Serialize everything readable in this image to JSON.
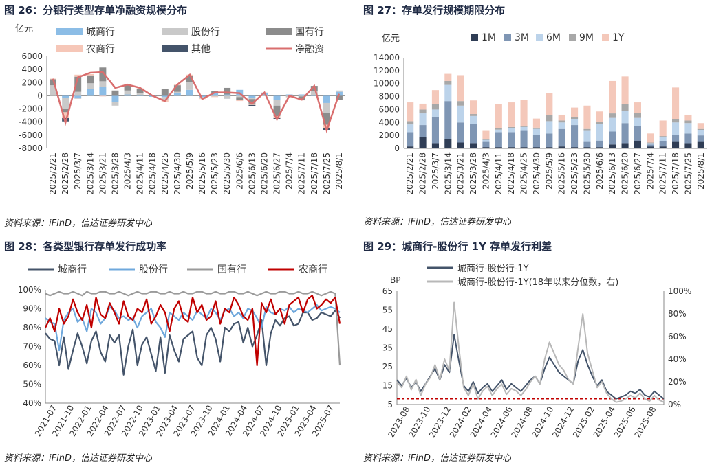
{
  "colors": {
    "chengshang": "#8cbde6",
    "gufen": "#c9c9c9",
    "guoyou": "#8c8c8c",
    "nongshang": "#f6c7b8",
    "qita": "#44546a",
    "net": "#d96e6e",
    "m1": "#2f3d55",
    "m3": "#7f96b4",
    "m6": "#bcd3ea",
    "m9": "#a8a8a8",
    "y1": "#f4c8ba",
    "c28_cs": "#44546a",
    "c28_gf": "#6fa8dc",
    "c28_gy": "#9a9a9a",
    "c28_ns": "#c00000",
    "c29_a": "#44546a",
    "c29_b": "#b8b8b8",
    "c29_ref": "#c00000"
  },
  "charts": [
    {
      "id": "c26",
      "title": "图 26：分银行类型存单净融资规模分布",
      "source": "资料来源：iFinD，信达证券研发中心",
      "chart_data": {
        "type": "bar",
        "stacked": true,
        "unit_label": "亿元",
        "ylim": [
          -8000,
          6000
        ],
        "yticks": [
          "6000",
          "4000",
          "2000",
          "0",
          "-2000",
          "-4000",
          "-6000",
          "-8000"
        ],
        "ytick_values": [
          6000,
          4000,
          2000,
          0,
          -2000,
          -4000,
          -6000,
          -8000
        ],
        "categories": [
          "2025/2/21",
          "2025/2/28",
          "2025/3/7",
          "2025/3/14",
          "2025/3/21",
          "2025/3/28",
          "2025/4/3",
          "2025/4/11",
          "2025/4/18",
          "2025/4/25",
          "2025/4/30",
          "2025/5/9",
          "2025/5/16",
          "2025/5/23",
          "2025/5/30",
          "2025/6/6",
          "2025/6/13",
          "2025/6/20",
          "2025/6/27",
          "2025/7/4",
          "2025/7/11",
          "2025/7/18",
          "2025/7/25",
          "2025/8/1"
        ],
        "xlabels": [
          "2025/2/21",
          "2025/2/28",
          "2025/3/7",
          "2025/3/14",
          "2025/3/21",
          "2025/3/28",
          "2025/4/3",
          "2025/4/11",
          "2025/4/18",
          "2025/4/25",
          "2025/4/30",
          "2025/5/9",
          "2025/5/16",
          "2025/5/23",
          "2025/5/30",
          "2025/6/6",
          "2025/6/13",
          "2025/6/20",
          "2025/6/27",
          "2025/7/4",
          "2025/7/11",
          "2025/7/18",
          "2025/7/25",
          "2025/8/1"
        ],
        "series": [
          {
            "name": "城商行",
            "values": [
              0,
              -300,
              -300,
              1000,
              1400,
              -1000,
              200,
              100,
              -150,
              -200,
              400,
              900,
              -200,
              400,
              200,
              900,
              -300,
              400,
              -600,
              200,
              200,
              100,
              -1100,
              600
            ]
          },
          {
            "name": "股份行",
            "values": [
              1600,
              -1700,
              600,
              900,
              800,
              -500,
              600,
              300,
              0,
              -400,
              200,
              1200,
              -200,
              -100,
              -300,
              -200,
              -200,
              100,
              -900,
              -200,
              -100,
              600,
              -1500,
              200
            ]
          },
          {
            "name": "国有行",
            "values": [
              900,
              -500,
              2300,
              1200,
              2100,
              800,
              900,
              700,
              0,
              1000,
              1000,
              900,
              0,
              300,
              1000,
              -500,
              -700,
              0,
              -1600,
              0,
              -500,
              800,
              -1800,
              -600
            ]
          },
          {
            "name": "农商行",
            "values": [
              100,
              -900,
              300,
              200,
              -100,
              0,
              100,
              50,
              0,
              -300,
              100,
              200,
              -100,
              -100,
              0,
              -100,
              -200,
              -50,
              -300,
              -50,
              -100,
              0,
              -500,
              0
            ]
          },
          {
            "name": "其他",
            "values": [
              0,
              -500,
              -100,
              0,
              0,
              0,
              0,
              0,
              0,
              0,
              0,
              0,
              0,
              0,
              -100,
              0,
              -200,
              0,
              -200,
              0,
              0,
              0,
              -300,
              0
            ]
          }
        ],
        "line": {
          "name": "净融资",
          "values": [
            2600,
            -4100,
            2800,
            3500,
            3600,
            1200,
            1700,
            1200,
            0,
            -800,
            1700,
            3200,
            -500,
            500,
            500,
            400,
            -1200,
            500,
            -3600,
            0,
            -600,
            1500,
            -5300,
            300
          ]
        }
      }
    },
    {
      "id": "c27",
      "title": "图 27：存单发行规模期限分布",
      "source": "资料来源：iFinD，信达证券研发中心",
      "chart_data": {
        "type": "bar",
        "stacked": true,
        "unit_label": "亿元",
        "ylim": [
          0,
          14000
        ],
        "yticks": [
          "14000",
          "12000",
          "10000",
          "8000",
          "6000",
          "4000",
          "2000",
          "0"
        ],
        "ytick_values": [
          14000,
          12000,
          10000,
          8000,
          6000,
          4000,
          2000,
          0
        ],
        "categories": [
          "2025/2/21",
          "2025/2/28",
          "2025/3/7",
          "2025/3/14",
          "2025/3/21",
          "2025/3/28",
          "2025/4/3",
          "2025/4/11",
          "2025/4/18",
          "2025/4/25",
          "2025/4/30",
          "2025/5/9",
          "2025/5/16",
          "2025/5/23",
          "2025/5/30",
          "2025/6/6",
          "2025/6/13",
          "2025/6/20",
          "2025/6/27",
          "2025/7/4",
          "2025/7/11",
          "2025/7/18",
          "2025/7/25",
          "2025/8/1"
        ],
        "xlabels": [
          "2025/2/21",
          "2025/2/28",
          "2025/3/7",
          "2025/3/14",
          "2025/3/21",
          "2025/3/28",
          "2025/4/3",
          "2025/4/11",
          "2025/4/18",
          "2025/4/25",
          "2025/4/30",
          "2025/5/9",
          "2025/5/16",
          "2025/5/23",
          "2025/5/30",
          "2025/6/6",
          "2025/6/13",
          "2025/6/20",
          "2025/6/27",
          "2025/7/4",
          "2025/7/11",
          "2025/7/18",
          "2025/7/25",
          "2025/8/1"
        ],
        "series": [
          {
            "name": "1M",
            "values": [
              300,
              1800,
              800,
              1400,
              900,
              800,
              200,
              200,
              200,
              200,
              200,
              200,
              300,
              200,
              200,
              200,
              600,
              800,
              1200,
              300,
              300,
              1000,
              800,
              1000
            ]
          },
          {
            "name": "3M",
            "values": [
              2200,
              1800,
              4000,
              5900,
              3100,
              3000,
              800,
              2300,
              2300,
              2500,
              1900,
              2100,
              2700,
              3400,
              800,
              1000,
              2000,
              3100,
              2300,
              300,
              800,
              1100,
              1500,
              1000
            ]
          },
          {
            "name": "6M",
            "values": [
              1200,
              1800,
              1200,
              2500,
              2600,
              1200,
              300,
              400,
              600,
              600,
              900,
              1900,
              1000,
              900,
              1700,
              2600,
              2100,
              1900,
              1200,
              200,
              600,
              1900,
              1600,
              800
            ]
          },
          {
            "name": "9M",
            "values": [
              500,
              600,
              800,
              600,
              700,
              300,
              100,
              200,
              200,
              200,
              200,
              900,
              300,
              300,
              300,
              300,
              700,
              1000,
              800,
              100,
              200,
              500,
              400,
              200
            ]
          },
          {
            "name": "1Y",
            "values": [
              2900,
              900,
              2200,
              1100,
              4000,
              2100,
              1300,
              3700,
              3800,
              4000,
              1400,
              3400,
              900,
              1500,
              3600,
              1600,
              5000,
              4300,
              1600,
              1400,
              2400,
              4900,
              900,
              900
            ]
          }
        ]
      }
    },
    {
      "id": "c28",
      "title": "图 28：各类型银行存单发行成功率",
      "source": "资料来源：iFinD，信达证券研发中心",
      "chart_data": {
        "type": "line",
        "ylim": [
          40,
          100
        ],
        "yticks": [
          "100%",
          "90%",
          "80%",
          "70%",
          "60%",
          "50%",
          "40%"
        ],
        "ytick_values": [
          100,
          90,
          80,
          70,
          60,
          50,
          40
        ],
        "xlabels": [
          "2021-07",
          "2021-10",
          "2022-01",
          "2022-04",
          "2022-07",
          "2022-10",
          "2023-01",
          "2023-04",
          "2023-07",
          "2023-10",
          "2024-01",
          "2024-04",
          "2024-07",
          "2024-10",
          "2025-01",
          "2025-04",
          "2025-07"
        ],
        "series": [
          {
            "name": "城商行",
            "values": [
              77,
              74,
              73,
              60,
              75,
              58,
              68,
              77,
              70,
              61,
              73,
              78,
              67,
              62,
              76,
              72,
              76,
              55,
              70,
              79,
              60,
              71,
              75,
              66,
              57,
              75,
              56,
              76,
              68,
              62,
              74,
              76,
              78,
              64,
              60,
              76,
              80,
              74,
              62,
              80,
              78,
              82,
              83,
              72,
              80,
              70,
              76,
              84,
              60,
              77,
              84,
              81,
              85,
              86,
              81,
              82,
              88,
              88,
              84,
              85,
              88,
              87,
              86,
              89,
              85
            ]
          },
          {
            "name": "股份行",
            "values": [
              85,
              83,
              82,
              68,
              84,
              88,
              90,
              83,
              85,
              78,
              90,
              88,
              82,
              85,
              91,
              89,
              85,
              86,
              84,
              85,
              80,
              86,
              88,
              90,
              83,
              80,
              75,
              88,
              86,
              84,
              88,
              86,
              84,
              89,
              87,
              85,
              90,
              88,
              84,
              89,
              90,
              86,
              88,
              85,
              90,
              89,
              85,
              80,
              91,
              88,
              87,
              90,
              89,
              91,
              88,
              90,
              89,
              88,
              90,
              92,
              89,
              90,
              91,
              90,
              88
            ]
          },
          {
            "name": "国有行",
            "values": [
              98,
              97,
              98,
              99,
              98,
              98,
              99,
              98,
              97,
              99,
              98,
              98,
              99,
              99,
              98,
              98,
              99,
              98,
              97,
              98,
              99,
              98,
              98,
              99,
              99,
              98,
              98,
              99,
              98,
              98,
              99,
              98,
              98,
              99,
              99,
              98,
              98,
              99,
              98,
              98,
              99,
              99,
              98,
              98,
              99,
              98,
              97,
              98,
              99,
              98,
              98,
              99,
              99,
              98,
              98,
              99,
              98,
              98,
              99,
              98,
              97,
              98,
              99,
              98,
              60
            ]
          },
          {
            "name": "农商行",
            "values": [
              80,
              85,
              78,
              90,
              82,
              86,
              95,
              88,
              84,
              92,
              80,
              96,
              87,
              85,
              93,
              88,
              82,
              94,
              86,
              84,
              90,
              88,
              95,
              82,
              86,
              92,
              88,
              78,
              90,
              94,
              85,
              83,
              96,
              88,
              92,
              84,
              86,
              94,
              82,
              90,
              88,
              96,
              92,
              86,
              84,
              90,
              60,
              93,
              88,
              95,
              87,
              90,
              82,
              92,
              94,
              96,
              88,
              95,
              97,
              90,
              92,
              95,
              93,
              96,
              82
            ]
          }
        ]
      }
    },
    {
      "id": "c29",
      "title": "图 29：城商行-股份行 1Y 存单发行利差",
      "source": "资料来源：iFinD，信达证券研发中心",
      "chart_data": {
        "type": "line",
        "dual_axis": true,
        "left_unit": "BP",
        "ylim": [
          5,
          65
        ],
        "yticks": [
          "65",
          "55",
          "45",
          "35",
          "25",
          "15",
          "5"
        ],
        "ytick_values": [
          65,
          55,
          45,
          35,
          25,
          15,
          5
        ],
        "y2lim": [
          0,
          100
        ],
        "y2ticks": [
          "100%",
          "80%",
          "60%",
          "40%",
          "20%",
          "0%"
        ],
        "y2tick_values": [
          100,
          80,
          60,
          40,
          20,
          0
        ],
        "xlabels": [
          "2023-08",
          "2023-10",
          "2023-12",
          "2024-02",
          "2024-04",
          "2024-06",
          "2024-08",
          "2024-10",
          "2024-12",
          "2025-02",
          "2025-04",
          "2025-06",
          "2025-08"
        ],
        "series": [
          {
            "name": "城商行-股份行-1Y",
            "axis": "left",
            "values": [
              18,
              15,
              19,
              14,
              17,
              12,
              16,
              20,
              24,
              18,
              26,
              22,
              42,
              28,
              15,
              12,
              17,
              11,
              14,
              16,
              12,
              15,
              18,
              13,
              16,
              14,
              12,
              15,
              18,
              20,
              16,
              24,
              30,
              26,
              22,
              20,
              18,
              16,
              28,
              34,
              26,
              20,
              15,
              18,
              12,
              10,
              8,
              9,
              10,
              12,
              11,
              13,
              10,
              9,
              12,
              10,
              8
            ]
          },
          {
            "name": "城商行-股份行-1Y(18年以来分位数，右)",
            "axis": "right",
            "values": [
              20,
              15,
              25,
              13,
              22,
              8,
              18,
              24,
              35,
              22,
              40,
              30,
              90,
              50,
              15,
              8,
              18,
              5,
              12,
              16,
              8,
              14,
              18,
              9,
              14,
              12,
              8,
              13,
              20,
              25,
              18,
              40,
              55,
              45,
              35,
              30,
              22,
              18,
              50,
              80,
              45,
              30,
              15,
              20,
              10,
              5,
              2,
              3,
              5,
              8,
              6,
              10,
              5,
              3,
              8,
              4,
              2
            ]
          }
        ],
        "reference_line": {
          "value": 8
        }
      }
    }
  ]
}
